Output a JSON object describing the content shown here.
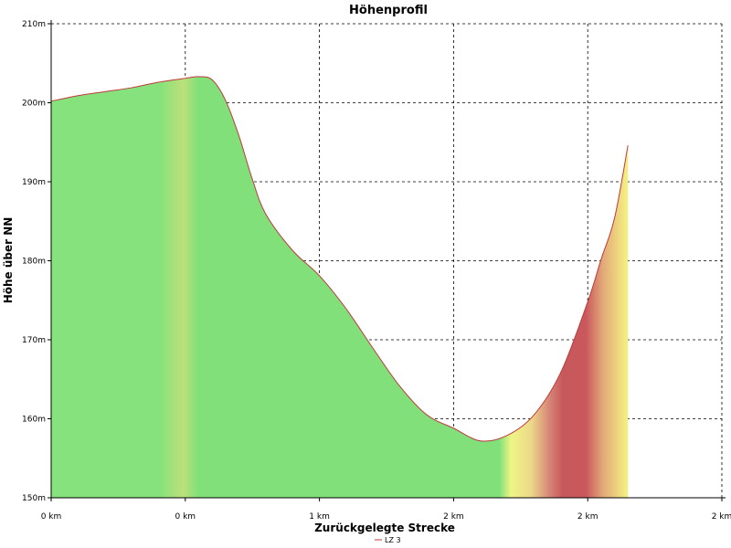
{
  "chart_data": {
    "type": "area",
    "title": "Höhenprofil",
    "xlabel": "Zurückgelegte Strecke",
    "ylabel": "Höhe über NN",
    "ylim": [
      150,
      210
    ],
    "yticks": [
      150,
      160,
      170,
      180,
      190,
      200,
      210
    ],
    "ytick_labels": [
      "150m",
      "160m",
      "170m",
      "180m",
      "190m",
      "200m",
      "210m"
    ],
    "xlim": [
      0,
      2.5
    ],
    "xticks": [
      0,
      0.5,
      1,
      1.5,
      2,
      2.5
    ],
    "xtick_labels": [
      "0 km",
      "0 km",
      "1 km",
      "2 km",
      "2 km",
      "2 km"
    ],
    "grid": true,
    "legend": "bottom-center",
    "series": [
      {
        "name": "LZ 3",
        "x": [
          0,
          0.1,
          0.2,
          0.3,
          0.4,
          0.5,
          0.55,
          0.6,
          0.65,
          0.7,
          0.75,
          0.8,
          0.9,
          1.0,
          1.1,
          1.2,
          1.3,
          1.4,
          1.5,
          1.6,
          1.7,
          1.8,
          1.9,
          2.0,
          2.05,
          2.1,
          2.15
        ],
        "y": [
          200.2,
          200.9,
          201.4,
          201.9,
          202.6,
          203.1,
          203.3,
          202.9,
          200.3,
          195.8,
          190.3,
          185.9,
          181.3,
          178.1,
          173.9,
          168.9,
          164.1,
          160.5,
          158.8,
          157.2,
          157.9,
          160.5,
          165.9,
          174.8,
          180.2,
          185.4,
          194.6
        ]
      }
    ],
    "colors": {
      "line": "#c0393b",
      "green": "#86e27c",
      "yellow": "#f4ed82",
      "red": "#c9585c",
      "grid": "#000000"
    }
  }
}
